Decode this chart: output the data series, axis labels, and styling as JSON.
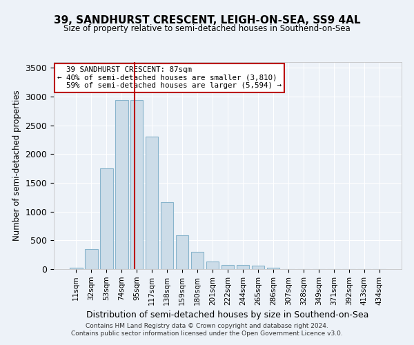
{
  "title": "39, SANDHURST CRESCENT, LEIGH-ON-SEA, SS9 4AL",
  "subtitle": "Size of property relative to semi-detached houses in Southend-on-Sea",
  "xlabel": "Distribution of semi-detached houses by size in Southend-on-Sea",
  "ylabel": "Number of semi-detached properties",
  "bar_labels": [
    "11sqm",
    "32sqm",
    "53sqm",
    "74sqm",
    "95sqm",
    "117sqm",
    "138sqm",
    "159sqm",
    "180sqm",
    "201sqm",
    "222sqm",
    "244sqm",
    "265sqm",
    "286sqm",
    "307sqm",
    "328sqm",
    "349sqm",
    "371sqm",
    "392sqm",
    "413sqm",
    "434sqm"
  ],
  "bar_values": [
    30,
    345,
    1750,
    2940,
    2940,
    2300,
    1165,
    590,
    305,
    130,
    75,
    75,
    55,
    30,
    0,
    0,
    0,
    0,
    0,
    0,
    0
  ],
  "bar_color": "#ccdce8",
  "bar_edge_color": "#88b4cc",
  "vline_color": "#bb0000",
  "vline_x": 3.87,
  "ylim": [
    0,
    3600
  ],
  "yticks": [
    0,
    500,
    1000,
    1500,
    2000,
    2500,
    3000,
    3500
  ],
  "property_label": "39 SANDHURST CRESCENT: 87sqm",
  "pct_smaller": 40,
  "n_smaller": 3810,
  "pct_larger": 59,
  "n_larger": 5594,
  "footer1": "Contains HM Land Registry data © Crown copyright and database right 2024.",
  "footer2": "Contains public sector information licensed under the Open Government Licence v3.0.",
  "bg_color": "#edf2f8"
}
